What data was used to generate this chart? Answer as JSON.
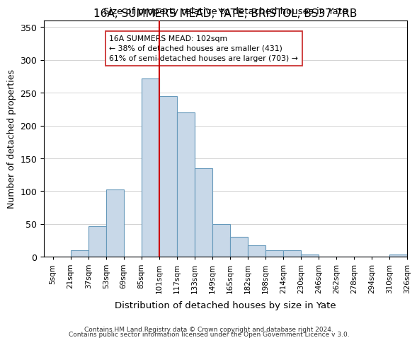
{
  "title": "16A, SUMMERS MEAD, YATE, BRISTOL, BS37 7RB",
  "subtitle": "Size of property relative to detached houses in Yate",
  "xlabel": "Distribution of detached houses by size in Yate",
  "ylabel": "Number of detached properties",
  "bin_labels": [
    "5sqm",
    "21sqm",
    "37sqm",
    "53sqm",
    "69sqm",
    "85sqm",
    "101sqm",
    "117sqm",
    "133sqm",
    "149sqm",
    "165sqm",
    "182sqm",
    "198sqm",
    "214sqm",
    "230sqm",
    "246sqm",
    "262sqm",
    "278sqm",
    "294sqm",
    "310sqm",
    "326sqm"
  ],
  "bar_heights": [
    0,
    10,
    47,
    103,
    0,
    272,
    245,
    220,
    135,
    50,
    30,
    17,
    10,
    10,
    3,
    0,
    0,
    0,
    0,
    3
  ],
  "bar_color": "#c8d8e8",
  "bar_edge_color": "#6699bb",
  "ylim": [
    0,
    360
  ],
  "yticks": [
    0,
    50,
    100,
    150,
    200,
    250,
    300,
    350
  ],
  "vline_color": "#cc0000",
  "annotation_title": "16A SUMMERS MEAD: 102sqm",
  "annotation_line1": "← 38% of detached houses are smaller (431)",
  "annotation_line2": "61% of semi-detached houses are larger (703) →",
  "footer1": "Contains HM Land Registry data © Crown copyright and database right 2024.",
  "footer2": "Contains public sector information licensed under the Open Government Licence v 3.0."
}
